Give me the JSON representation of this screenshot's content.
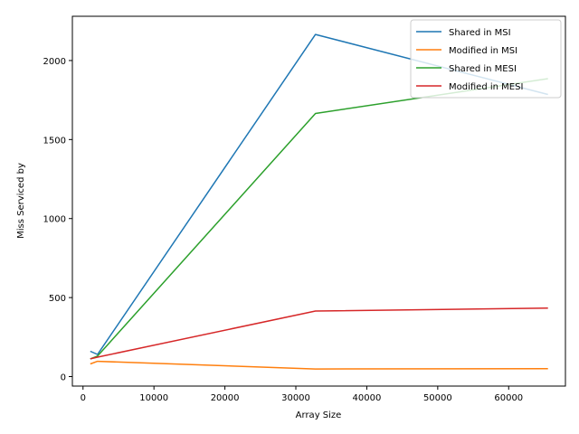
{
  "chart_data": {
    "type": "line",
    "title": "",
    "xlabel": "Array Size",
    "ylabel": "Miss Serviced by",
    "xlim": [
      -1500,
      68000
    ],
    "ylim": [
      -60,
      2280
    ],
    "xticks": [
      0,
      10000,
      20000,
      30000,
      40000,
      50000,
      60000
    ],
    "yticks": [
      0,
      500,
      1000,
      1500,
      2000
    ],
    "x": [
      1024,
      2048,
      32768,
      65536
    ],
    "legend_position": "top-right",
    "grid": false,
    "series": [
      {
        "name": "Shared in MSI",
        "color": "#1f77b4",
        "values": [
          160,
          140,
          2165,
          1785
        ]
      },
      {
        "name": "Modified in MSI",
        "color": "#ff7f0e",
        "values": [
          80,
          97,
          48,
          50
        ]
      },
      {
        "name": "Shared in MESI",
        "color": "#2ca02c",
        "values": [
          112,
          130,
          1665,
          1885
        ]
      },
      {
        "name": "Modified in MESI",
        "color": "#d62728",
        "values": [
          112,
          123,
          415,
          433
        ]
      }
    ]
  }
}
